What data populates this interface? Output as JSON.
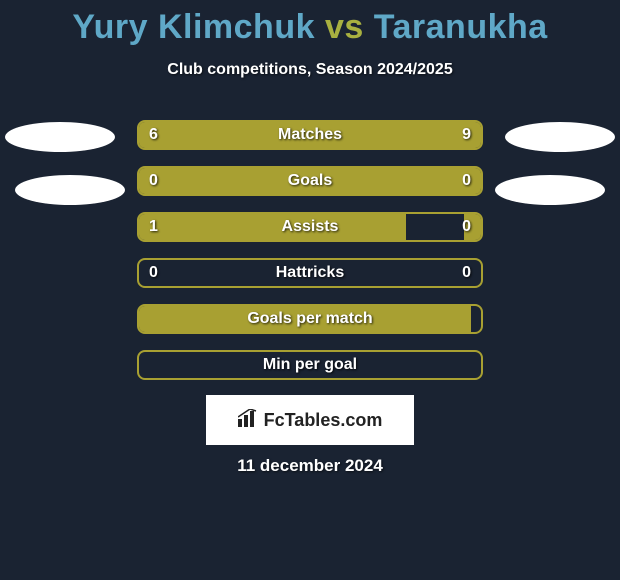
{
  "title": {
    "player1": "Yury Klimchuk",
    "vs": "vs",
    "player2": "Taranukha",
    "player1_color": "#5fa8c7",
    "vs_color": "#a8b040",
    "player2_color": "#5fa8c7"
  },
  "subtitle": "Club competitions, Season 2024/2025",
  "background_color": "#1a2332",
  "bar_color": "#a8a032",
  "text_color": "#ffffff",
  "stats": [
    {
      "label": "Matches",
      "left_val": "6",
      "right_val": "9",
      "left_pct": 40,
      "right_pct": 60,
      "show_vals": true
    },
    {
      "label": "Goals",
      "left_val": "0",
      "right_val": "0",
      "left_pct": 50,
      "right_pct": 50,
      "show_vals": true
    },
    {
      "label": "Assists",
      "left_val": "1",
      "right_val": "0",
      "left_pct": 78,
      "right_pct": 5,
      "show_vals": true
    },
    {
      "label": "Hattricks",
      "left_val": "0",
      "right_val": "0",
      "left_pct": 0,
      "right_pct": 0,
      "show_vals": true
    },
    {
      "label": "Goals per match",
      "left_val": "",
      "right_val": "",
      "left_pct": 97,
      "right_pct": 0,
      "show_vals": false
    },
    {
      "label": "Min per goal",
      "left_val": "",
      "right_val": "",
      "left_pct": 0,
      "right_pct": 0,
      "show_vals": false
    }
  ],
  "footer": {
    "logo_text": "FcTables.com",
    "date": "11 december 2024"
  }
}
